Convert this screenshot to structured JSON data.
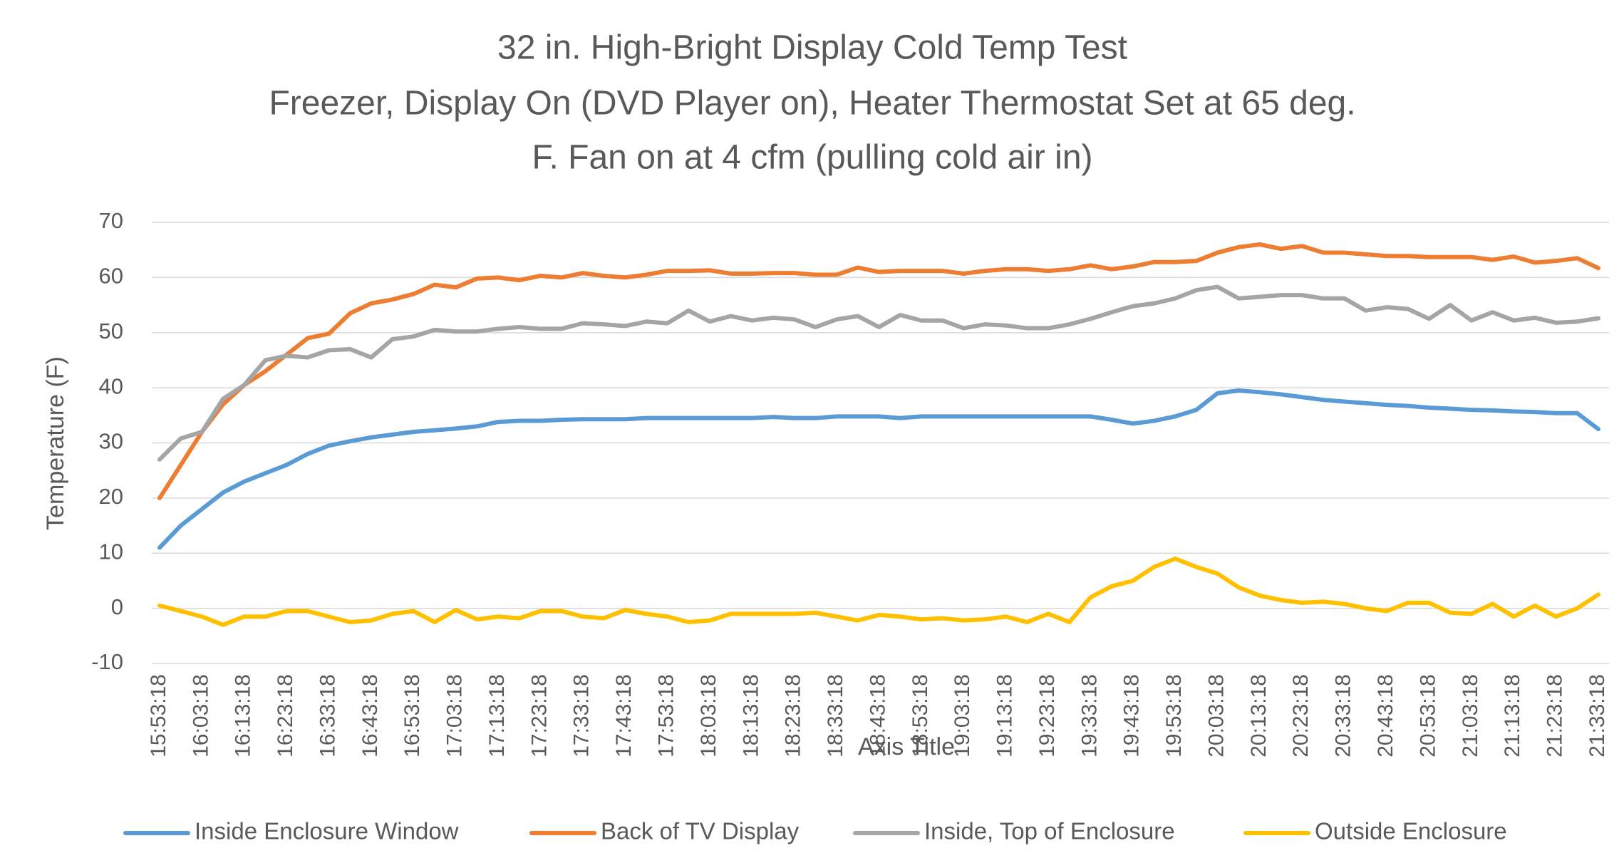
{
  "chart_data": {
    "type": "line",
    "title": "32 in. High-Bright Display Cold Temp Test",
    "subtitle": [
      "Freezer,  Display On (DVD Player on), Heater Thermostat Set at 65 deg.",
      "F.  Fan on at 4 cfm (pulling cold air in)"
    ],
    "x_label": "Axis Title",
    "y_label": "Temperature (F)",
    "categories": [
      "15:53:18",
      null,
      "16:03:18",
      null,
      "16:13:18",
      null,
      "16:23:18",
      null,
      "16:33:18",
      null,
      "16:43:18",
      null,
      "16:53:18",
      null,
      "17:03:18",
      null,
      "17:13:18",
      null,
      "17:23:18",
      null,
      "17:33:18",
      null,
      "17:43:18",
      null,
      "17:53:18",
      null,
      "18:03:18",
      null,
      "18:13:18",
      null,
      "18:23:18",
      null,
      "18:33:18",
      null,
      "18:43:18",
      null,
      "18:53:18",
      null,
      "19:03:18",
      null,
      "19:13:18",
      null,
      "19:23:18",
      null,
      "19:33:18",
      null,
      "19:43:18",
      null,
      "19:53:18",
      null,
      "20:03:18",
      null,
      "20:13:18",
      null,
      "20:23:18",
      null,
      "20:33:18",
      null,
      "20:43:18",
      null,
      "20:53:18",
      null,
      "21:03:18",
      null,
      "21:13:18",
      null,
      "21:23:18",
      null,
      "21:33:18"
    ],
    "series": [
      {
        "name": "Inside Enclosure Window",
        "color": "#5b9bd5",
        "values": [
          11,
          15,
          18,
          21,
          23,
          24.5,
          26,
          28,
          29.5,
          30.3,
          31,
          31.5,
          32,
          32.3,
          32.6,
          33,
          33.8,
          34,
          34,
          34.2,
          34.3,
          34.3,
          34.3,
          34.5,
          34.5,
          34.5,
          34.5,
          34.5,
          34.5,
          34.7,
          34.5,
          34.5,
          34.8,
          34.8,
          34.8,
          34.5,
          34.8,
          34.8,
          34.8,
          34.8,
          34.8,
          34.8,
          34.8,
          34.8,
          34.8,
          34.2,
          33.5,
          34,
          34.8,
          36,
          39,
          39.5,
          39.2,
          38.8,
          38.3,
          37.8,
          37.5,
          37.2,
          36.9,
          36.7,
          36.4,
          36.2,
          36,
          35.9,
          35.7,
          35.6,
          35.4,
          35.4,
          32.5
        ]
      },
      {
        "name": "Back of TV Display",
        "color": "#ed7d31",
        "values": [
          20,
          26,
          32,
          37,
          40.5,
          43,
          46,
          49,
          49.8,
          53.5,
          55.3,
          56,
          57,
          58.7,
          58.2,
          59.8,
          60,
          59.5,
          60.3,
          60,
          60.8,
          60.3,
          60,
          60.5,
          61.2,
          61.2,
          61.3,
          60.7,
          60.7,
          60.8,
          60.8,
          60.5,
          60.5,
          61.8,
          61,
          61.2,
          61.2,
          61.2,
          60.7,
          61.2,
          61.5,
          61.5,
          61.2,
          61.5,
          62.2,
          61.5,
          62,
          62.8,
          62.8,
          63,
          64.5,
          65.5,
          66,
          65.2,
          65.7,
          64.5,
          64.5,
          64.2,
          63.9,
          63.9,
          63.7,
          63.7,
          63.7,
          63.2,
          63.8,
          62.7,
          63,
          63.5,
          61.7
        ]
      },
      {
        "name": "Inside, Top of Enclosure",
        "color": "#a5a5a5",
        "values": [
          27,
          30.8,
          32,
          38,
          40.5,
          45,
          45.8,
          45.5,
          46.8,
          47,
          45.5,
          48.8,
          49.3,
          50.5,
          50.2,
          50.2,
          50.7,
          51,
          50.7,
          50.7,
          51.7,
          51.5,
          51.2,
          52,
          51.7,
          54,
          52,
          53,
          52.2,
          52.7,
          52.4,
          51,
          52.4,
          53,
          51,
          53.2,
          52.2,
          52.2,
          50.8,
          51.5,
          51.3,
          50.8,
          50.8,
          51.5,
          52.5,
          53.7,
          54.8,
          55.3,
          56.2,
          57.7,
          58.3,
          56.2,
          56.5,
          56.8,
          56.8,
          56.2,
          56.2,
          54,
          54.6,
          54.3,
          52.5,
          55,
          52.2,
          53.7,
          52.2,
          52.7,
          51.8,
          52,
          52.6
        ]
      },
      {
        "name": "Outside Enclosure",
        "color": "#ffc000",
        "values": [
          0.5,
          -0.5,
          -1.5,
          -3,
          -1.5,
          -1.5,
          -0.5,
          -0.5,
          -1.5,
          -2.5,
          -2.2,
          -1,
          -0.5,
          -2.5,
          -0.3,
          -2,
          -1.5,
          -1.8,
          -0.5,
          -0.5,
          -1.5,
          -1.8,
          -0.3,
          -1,
          -1.5,
          -2.5,
          -2.2,
          -1,
          -1,
          -1,
          -1,
          -0.8,
          -1.5,
          -2.2,
          -1.2,
          -1.5,
          -2,
          -1.8,
          -2.2,
          -2,
          -1.5,
          -2.5,
          -1,
          -2.5,
          2,
          4,
          5,
          7.5,
          9,
          7.5,
          6.3,
          3.8,
          2.3,
          1.5,
          1,
          1.2,
          0.8,
          0,
          -0.5,
          1,
          1,
          -0.8,
          -1,
          0.8,
          -1.5,
          0.5,
          -1.5,
          0,
          2.5
        ]
      }
    ],
    "ylim": [
      -10,
      70
    ],
    "yticks": [
      -10,
      0,
      10,
      20,
      30,
      40,
      50,
      60,
      70
    ],
    "grid": true,
    "legend": "bottom"
  }
}
